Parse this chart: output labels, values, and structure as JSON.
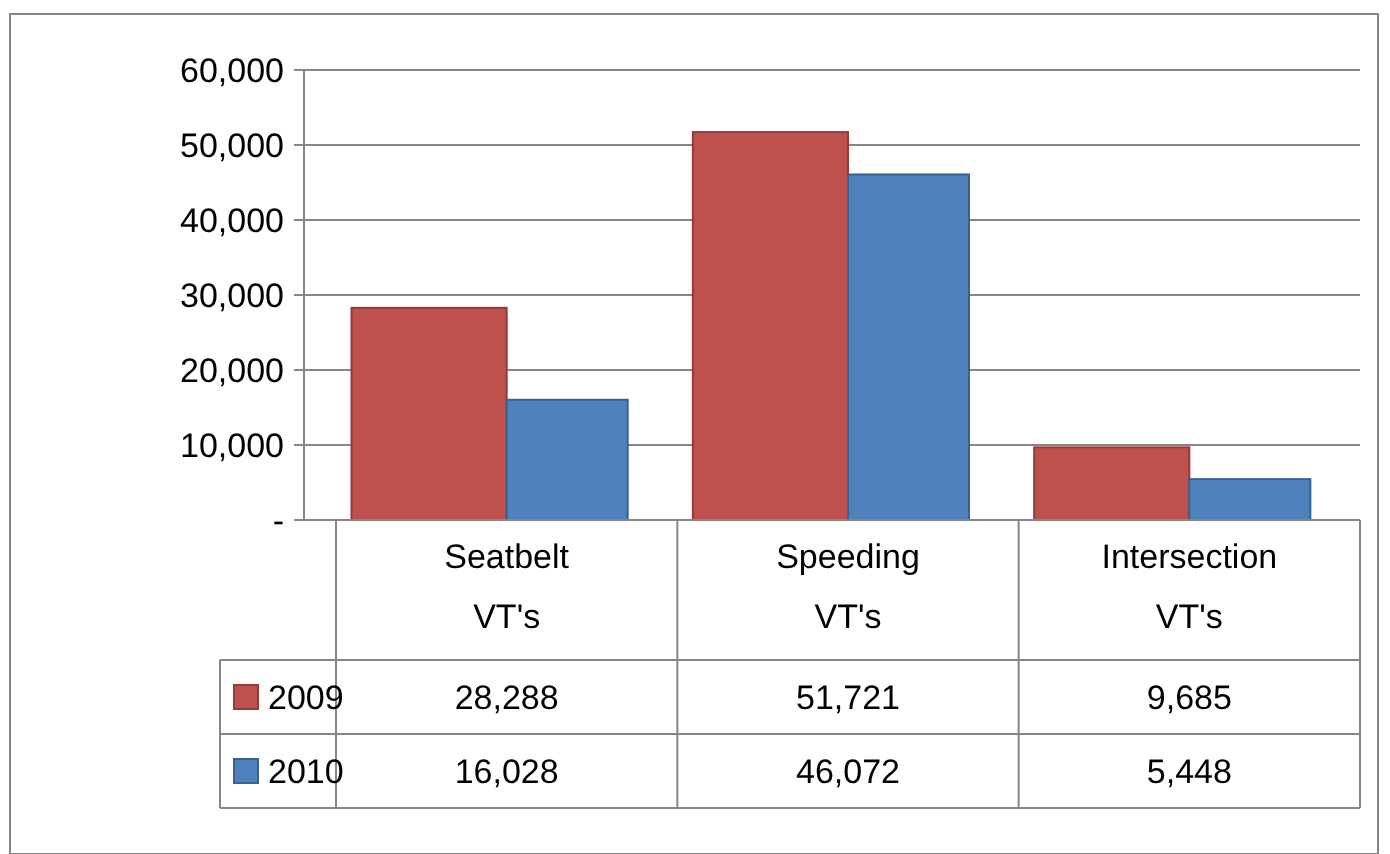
{
  "chart_data": {
    "type": "bar",
    "categories": [
      "Seatbelt VT's",
      "Speeding VT's",
      "Intersection VT's"
    ],
    "series": [
      {
        "name": "2009",
        "color": "#c0504d",
        "values": [
          28288,
          51721,
          9685
        ],
        "value_labels": [
          "28,288",
          "51,721",
          "9,685"
        ]
      },
      {
        "name": "2010",
        "color": "#4f81bd",
        "values": [
          16028,
          46072,
          5448
        ],
        "value_labels": [
          "16,028",
          "46,072",
          "5,448"
        ]
      }
    ],
    "ylim": [
      0,
      60000
    ],
    "yticks": [
      {
        "value": 0,
        "label": "-"
      },
      {
        "value": 10000,
        "label": "10,000"
      },
      {
        "value": 20000,
        "label": "20,000"
      },
      {
        "value": 30000,
        "label": "30,000"
      },
      {
        "value": 40000,
        "label": "40,000"
      },
      {
        "value": 50000,
        "label": "50,000"
      },
      {
        "value": 60000,
        "label": "60,000"
      }
    ],
    "grid": "y",
    "legend": "bottom left"
  }
}
